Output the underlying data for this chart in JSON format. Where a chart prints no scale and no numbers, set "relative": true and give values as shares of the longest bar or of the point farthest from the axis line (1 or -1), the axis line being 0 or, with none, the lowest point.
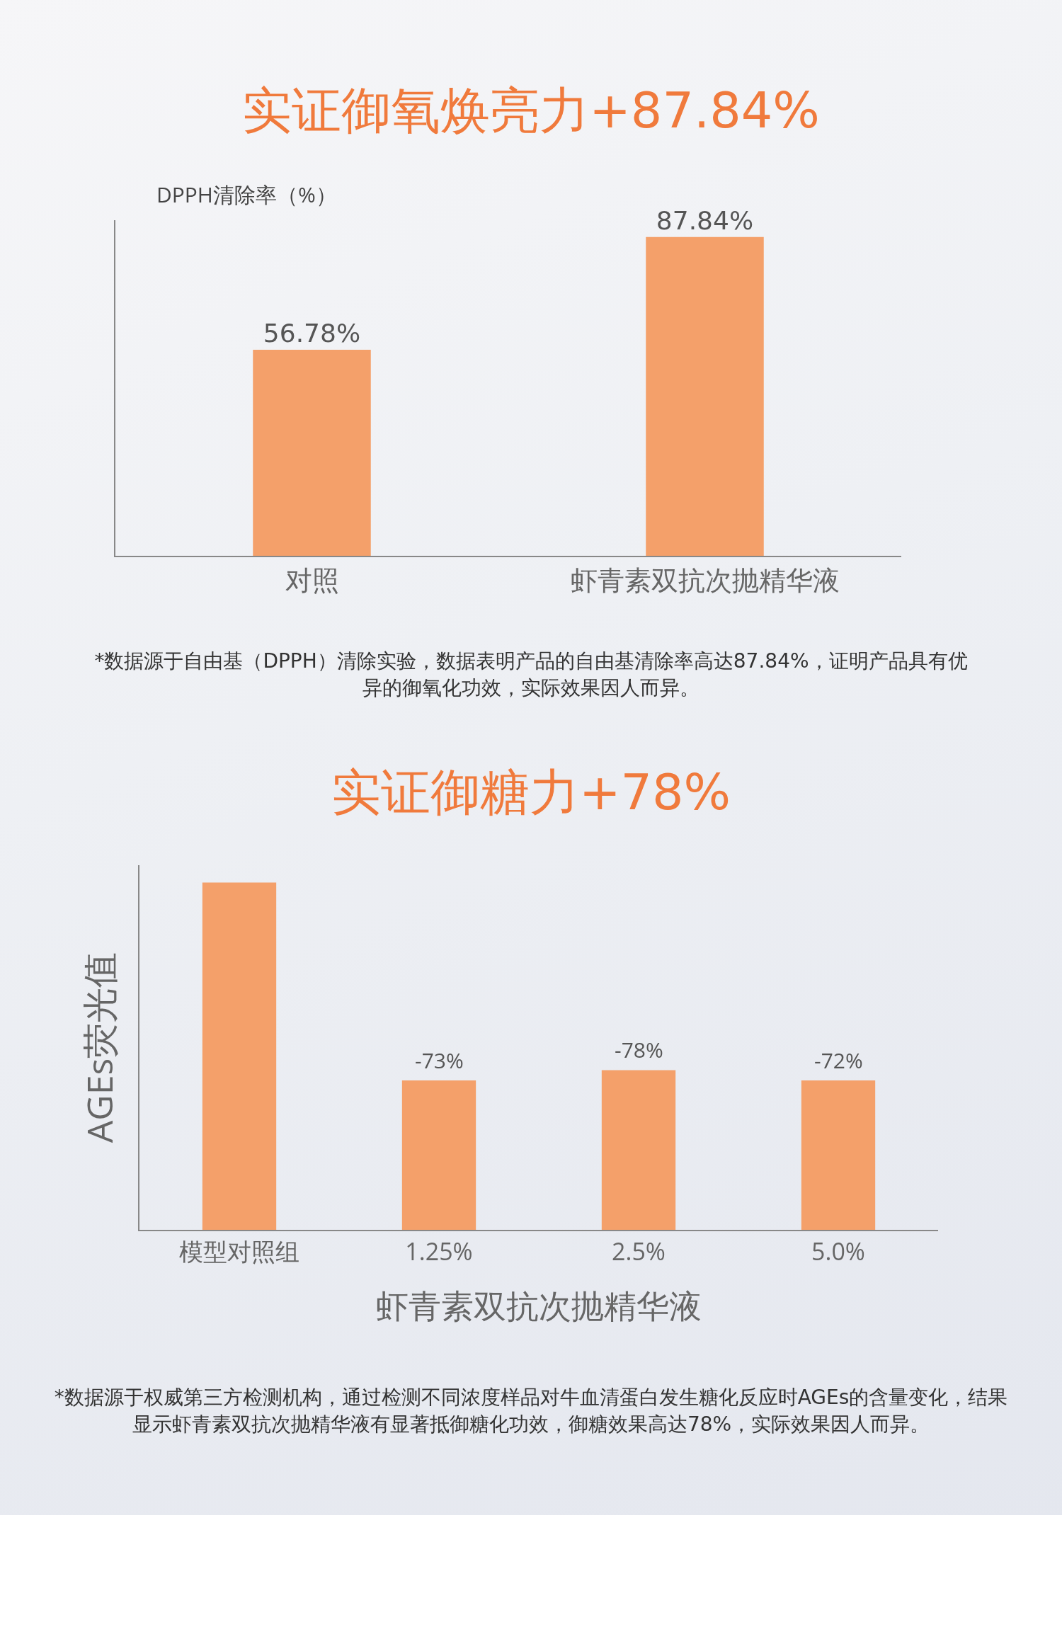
{
  "chart_data": [
    {
      "type": "bar",
      "title": "实证御氧焕亮力+87.84%",
      "ylabel": "DPPH清除率（%）",
      "categories": [
        "对照",
        "虾青素双抗次抛精华液"
      ],
      "values": [
        56.78,
        87.84
      ],
      "value_labels": [
        "56.78%",
        "87.84%"
      ],
      "color": "#f4a06a",
      "tick_labels": "x",
      "grid": false,
      "legend": false,
      "annotations": [
        "*数据源于自由基（DPPH）清除实验，数据表明产品的自由基清除率高达87.84%，证明产品具有优异的御氧化功效，实际效果因人而异。"
      ]
    },
    {
      "type": "bar",
      "title": "实证御糖力+78%",
      "ylabel": "AGEs荧光值",
      "xlabel": "虾青素双抗次抛精华液",
      "categories": [
        "模型对照组",
        "1.25%",
        "2.5%",
        "5.0%"
      ],
      "values": [
        1,
        0.43,
        0.46,
        0.43
      ],
      "relative": true,
      "color": "#f4a06a",
      "grid": false,
      "legend": false,
      "annotations": [
        {
          "text": "-73%",
          "x": "1.25%",
          "y": 0.43
        },
        {
          "text": "-78%",
          "x": "2.5%",
          "y": 0.46
        },
        {
          "text": "-72%",
          "x": "5.0%",
          "y": 0.43
        },
        "*数据源于权威第三方检测机构，通过检测不同浓度样品对牛血清蛋白发生糖化反应时AGEs的含量变化，结果显示虾青素双抗次抛精华液有显著抵御糖化功效，御糖效果高达78%，实际效果因人而异。"
      ]
    }
  ]
}
